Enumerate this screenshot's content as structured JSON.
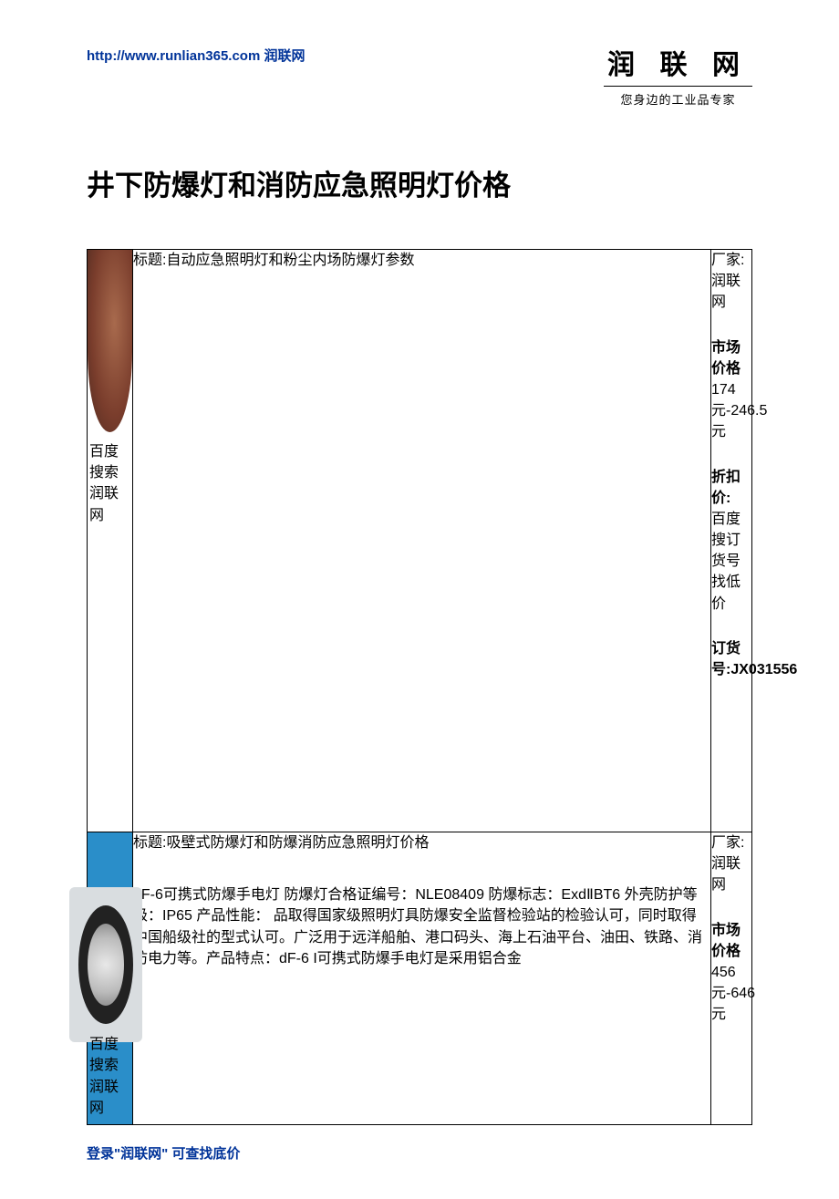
{
  "header": {
    "url": "http://www.runlian365.com",
    "brand_suffix": "润联网",
    "logo_main": "润 联 网",
    "logo_sub": "您身边的工业品专家"
  },
  "title": "井下防爆灯和消防应急照明灯价格",
  "row1": {
    "img_search": "百度搜索润联网",
    "subject": "标题:自动应急照明灯和粉尘内场防爆灯参数",
    "meta_maker_label": "厂家:",
    "meta_maker_value": "润联网",
    "meta_market_label": "市场价格",
    "meta_market_value": "174元-246.5元",
    "meta_discount_label": "折扣价:",
    "meta_discount_value": "百度搜订货号找低价",
    "meta_order_label": "订货号:",
    "meta_order_value": "JX031556"
  },
  "row2": {
    "img_search": "百度搜索润联网",
    "subject": "标题:吸壁式防爆灯和防爆消防应急照明灯价格",
    "body": "dF-6可携式防爆手电灯 防爆灯合格证编号：NLE08409 防爆标志：ExdⅡBT6 外壳防护等级：IP65 产品性能：\n品取得国家级照明灯具防爆安全监督检验站的检验认可，同时取得中国船级社的型式认可。广泛用于远洋船舶、港口码头、海上石油平台、油田、铁路、消防电力等。产品特点：dF-6 I可携式防爆手电灯是采用铝合金",
    "meta_maker_label": "厂家:",
    "meta_maker_value": "润联网",
    "meta_market_label": "市场价格",
    "meta_market_value": "456元-646元"
  },
  "footer": "登录\"润联网\" 可查找底价",
  "colors": {
    "link": "#003399",
    "text": "#000000",
    "border": "#000000",
    "row2_bg": "#2a8ec9"
  }
}
